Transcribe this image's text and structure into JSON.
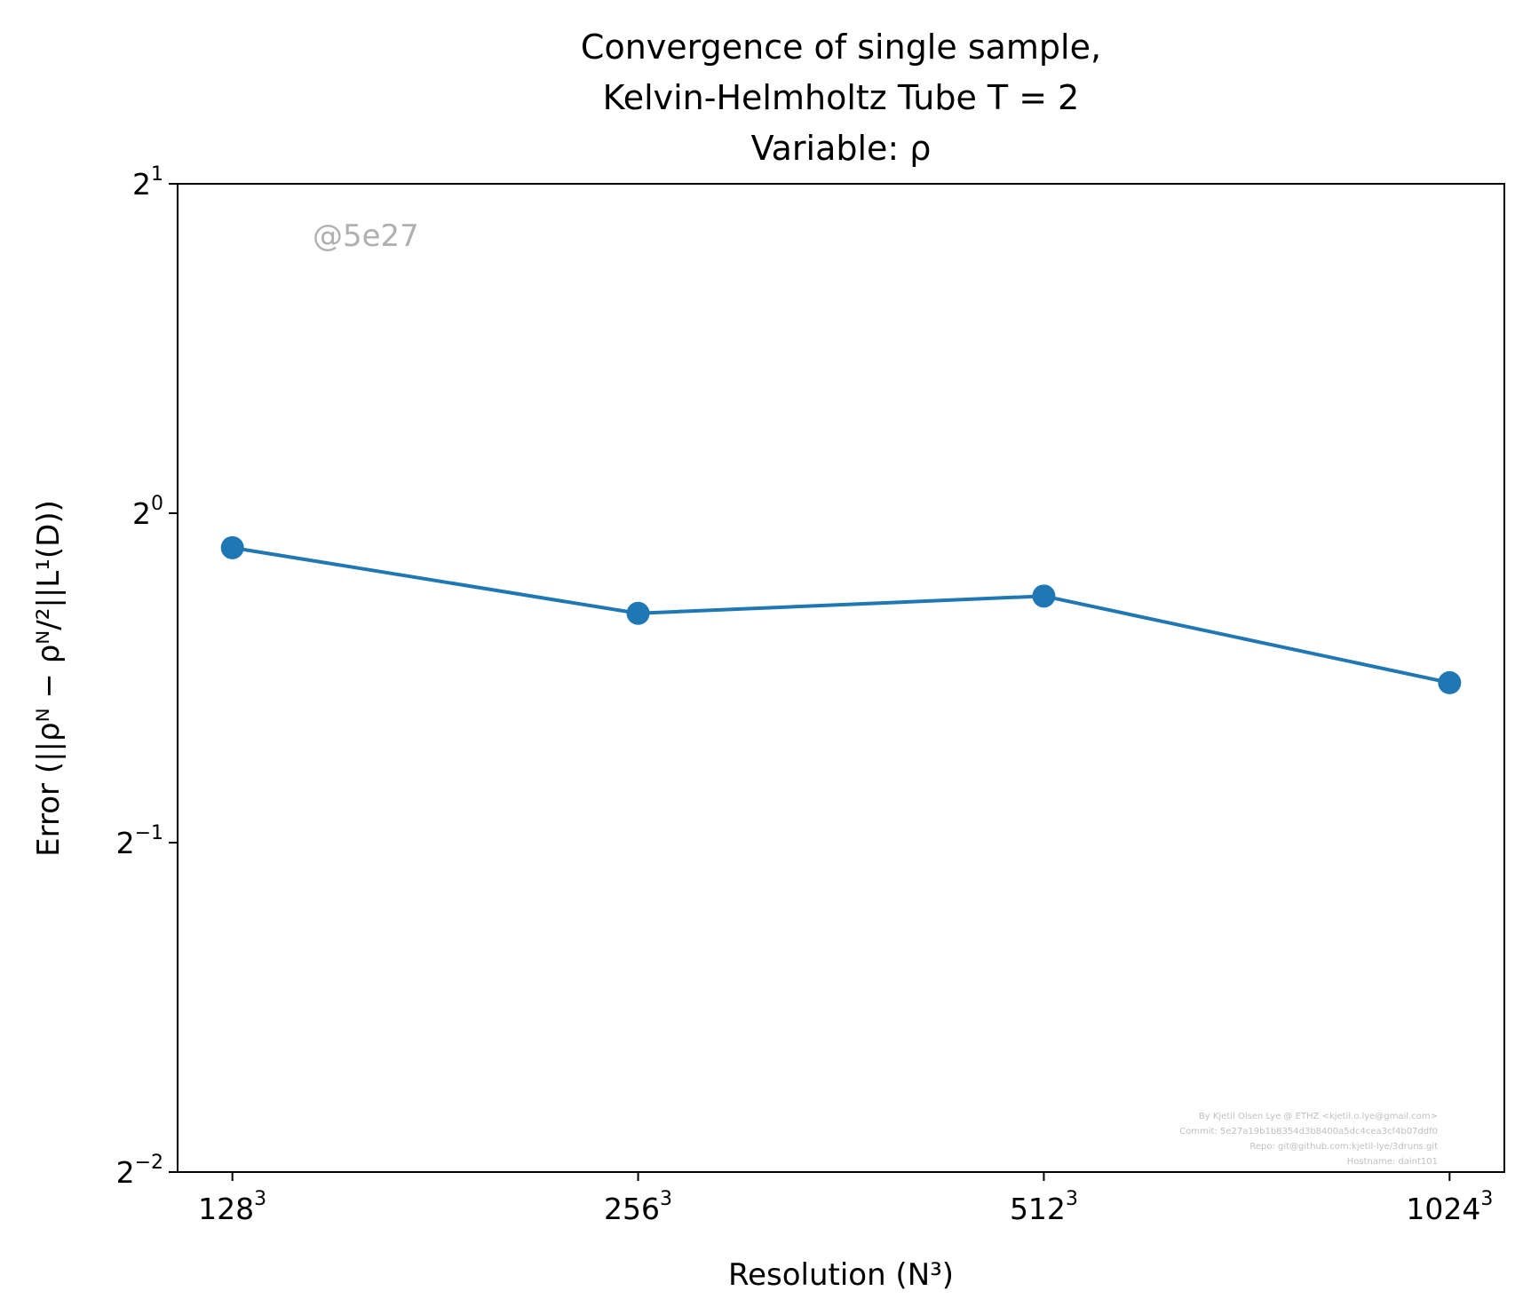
{
  "chart_data": {
    "type": "line",
    "title_lines": [
      "Convergence of single sample,",
      "Kelvin-Helmholtz Tube T = 2",
      "Variable: ρ"
    ],
    "xlabel": "Resolution (N³)",
    "ylabel": "Error (||ρᴺ − ρᴺ/²||L¹(D))",
    "x_scale": "log2",
    "y_scale": "log2",
    "categories": [
      "128³",
      "256³",
      "512³",
      "1024³"
    ],
    "x": [
      128,
      256,
      512,
      1024
    ],
    "series": [
      {
        "values": [
          0.93,
          0.81,
          0.84,
          0.7
        ],
        "color": "#1f77b4",
        "marker": "circle"
      }
    ],
    "ylim": [
      0.25,
      2
    ],
    "yticks": [
      {
        "base": "2",
        "exp": "1",
        "value": 2
      },
      {
        "base": "2",
        "exp": "0",
        "value": 1
      },
      {
        "base": "2",
        "exp": "−1",
        "value": 0.5
      },
      {
        "base": "2",
        "exp": "−2",
        "value": 0.25
      }
    ],
    "xticks": [
      {
        "base": "128",
        "exp": "3",
        "value": 128
      },
      {
        "base": "256",
        "exp": "3",
        "value": 256
      },
      {
        "base": "512",
        "exp": "3",
        "value": 512
      },
      {
        "base": "1024",
        "exp": "3",
        "value": 1024
      }
    ],
    "grid": false,
    "watermark": "@5e27",
    "credits": [
      "By Kjetil Olsen Lye @ ETHZ <kjetil.o.lye@gmail.com>",
      "Commit: 5e27a19b1b8354d3b8400a5dc4cea3cf4b07ddf0",
      "Repo: git@github.com:kjetil-lye/3druns.git",
      "Hostname: daint101"
    ]
  }
}
